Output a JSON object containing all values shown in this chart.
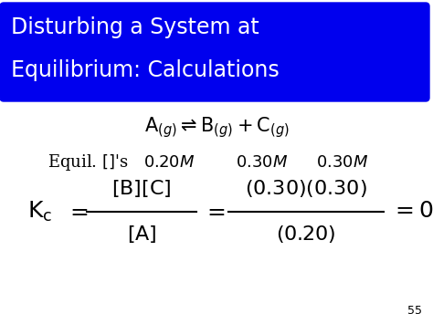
{
  "title_line1": "Disturbing a System at",
  "title_line2": "Equilibrium: Calculations",
  "title_bg_color": "#0000EE",
  "title_text_color": "#FFFFFF",
  "bg_color": "#FFFFFF",
  "slide_number": "55",
  "title_fontsize": 17,
  "body_fontsize": 14,
  "kc_fontsize": 16
}
